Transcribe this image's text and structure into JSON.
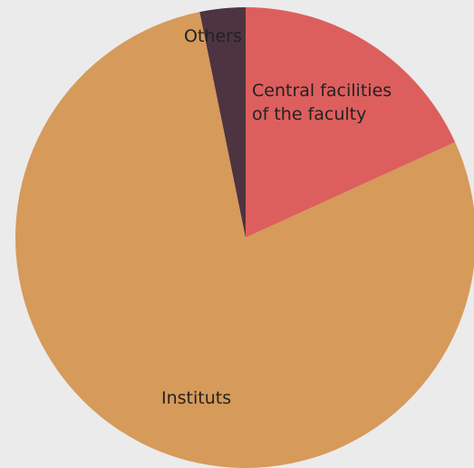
{
  "chart_data": {
    "type": "pie",
    "title": "",
    "slices": [
      {
        "label_lines": [
          "Central facilities",
          "of the faculty"
        ],
        "value": 18.2,
        "color": "#dd5f5d"
      },
      {
        "label_lines": [
          "Instituts"
        ],
        "value": 78.6,
        "color": "#d69a5a"
      },
      {
        "label_lines": [
          "Others"
        ],
        "value": 3.2,
        "color": "#4e3340"
      }
    ],
    "start_angle": "12 o'clock",
    "direction": "clockwise",
    "legend": "none"
  }
}
